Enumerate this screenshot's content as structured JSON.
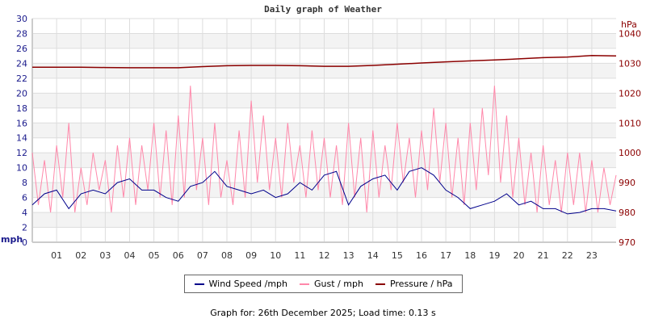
{
  "chart_data": {
    "type": "line",
    "title": "Daily graph of Weather",
    "ylabel_left": "mph",
    "ylabel_right": "hPa",
    "ylim_left": [
      0,
      30
    ],
    "ylim_right": [
      970,
      1045
    ],
    "yticks_left": [
      "0",
      "2",
      "4",
      "6",
      "8",
      "10",
      "12",
      "14",
      "16",
      "18",
      "20",
      "22",
      "24",
      "26",
      "28",
      "30"
    ],
    "yticks_right": [
      "970",
      "980",
      "990",
      "1000",
      "1010",
      "1020",
      "1030",
      "1040"
    ],
    "xticks": [
      "01",
      "02",
      "03",
      "04",
      "05",
      "06",
      "07",
      "08",
      "09",
      "10",
      "11",
      "12",
      "13",
      "14",
      "15",
      "16",
      "17",
      "18",
      "19",
      "20",
      "21",
      "22",
      "23"
    ],
    "xlim_hours": [
      0,
      24
    ],
    "grid": true,
    "legend_position": "bottom",
    "series": [
      {
        "name": "Wind Speed /mph",
        "color": "#00008b",
        "axis": "left",
        "x_step_hours": 0.5,
        "values": [
          5,
          6.5,
          7,
          4.5,
          6.5,
          7,
          6.5,
          8,
          8.5,
          7,
          7,
          6,
          5.5,
          7.5,
          8,
          9.5,
          7.5,
          7,
          6.5,
          7,
          6,
          6.5,
          8,
          7,
          9,
          9.5,
          5,
          7.5,
          8.5,
          9,
          7,
          9.5,
          10,
          9,
          7,
          6,
          4.5,
          5,
          5.5,
          6.5,
          5,
          5.5,
          4.5,
          4.5,
          3.8,
          4,
          4.5,
          4.5,
          4.2
        ]
      },
      {
        "name": "Gust / mph",
        "color": "#ff88aa",
        "axis": "left",
        "x_step_hours": 0.25,
        "values": [
          12,
          5,
          11,
          4,
          13,
          6,
          16,
          4,
          10,
          5,
          12,
          7,
          11,
          4,
          13,
          6,
          14,
          5,
          13,
          7,
          16,
          6,
          15,
          5,
          17,
          6,
          21,
          7,
          14,
          5,
          16,
          6,
          11,
          5,
          15,
          6,
          19,
          8,
          17,
          7,
          14,
          6,
          16,
          8,
          13,
          6,
          15,
          7,
          14,
          6,
          13,
          5,
          16,
          6,
          14,
          4,
          15,
          6,
          13,
          7,
          16,
          8,
          14,
          6,
          15,
          7,
          18,
          8,
          16,
          6,
          14,
          5,
          16,
          7,
          18,
          9,
          21,
          8,
          17,
          6,
          14,
          5,
          12,
          4,
          13,
          5,
          11,
          4,
          12,
          5,
          12,
          4,
          11,
          4,
          10,
          5,
          9
        ]
      },
      {
        "name": "Pressure / hPa",
        "color": "#8b0000",
        "axis": "right",
        "x_step_hours": 1,
        "values": [
          1028.7,
          1028.7,
          1028.7,
          1028.6,
          1028.5,
          1028.5,
          1028.5,
          1028.9,
          1029.2,
          1029.3,
          1029.3,
          1029.2,
          1029.0,
          1029.0,
          1029.3,
          1029.7,
          1030.1,
          1030.5,
          1030.8,
          1031.1,
          1031.5,
          1031.9,
          1032.1,
          1032.6,
          1032.5
        ]
      }
    ]
  },
  "legend": {
    "wind": "Wind Speed /mph",
    "gust": "Gust / mph",
    "pressure": "Pressure / hPa"
  },
  "footer": "Graph for: 26th December 2025; Load time: 0.13 s"
}
